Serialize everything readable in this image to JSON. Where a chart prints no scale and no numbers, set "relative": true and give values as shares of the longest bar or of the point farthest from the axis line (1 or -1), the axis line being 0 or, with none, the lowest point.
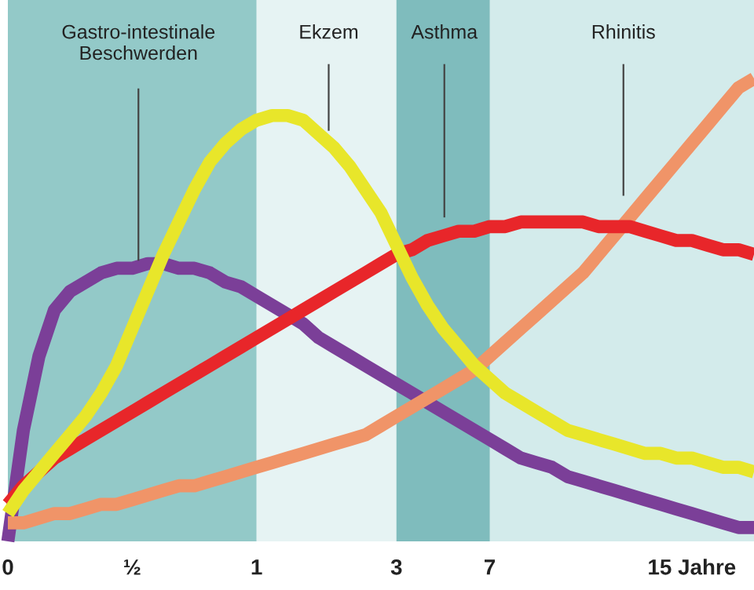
{
  "chart_data": {
    "type": "line",
    "relative": true,
    "grid": false,
    "legend": false,
    "marker": "none",
    "line_style": "solid",
    "categories": [
      "0",
      null,
      null,
      null,
      null,
      null,
      null,
      null,
      "½",
      null,
      null,
      null,
      null,
      null,
      null,
      null,
      "1",
      null,
      null,
      null,
      null,
      null,
      null,
      null,
      null,
      "3",
      null,
      null,
      null,
      null,
      null,
      "7",
      null,
      null,
      null,
      null,
      null,
      null,
      null,
      null,
      null,
      null,
      null,
      null,
      "15 Jahre",
      null,
      null,
      null,
      null
    ],
    "bands": [
      {
        "axis": "x",
        "from": "0",
        "to": "1",
        "color": "#93c9c8"
      },
      {
        "axis": "x",
        "from": "1",
        "to": "3",
        "color": "#e6f3f3"
      },
      {
        "axis": "x",
        "from": "3",
        "to": "7",
        "color": "#7fbcbd"
      }
    ],
    "series": [
      {
        "color": "#7b3f98",
        "values": [
          0,
          0.24,
          0.4,
          0.5,
          0.54,
          0.56,
          0.58,
          0.59,
          0.59,
          0.6,
          0.6,
          0.59,
          0.59,
          0.58,
          0.56,
          0.55,
          0.53,
          0.51,
          0.49,
          0.47,
          0.44,
          0.42,
          0.4,
          0.38,
          0.36,
          0.34,
          0.32,
          0.3,
          0.28,
          0.26,
          0.24,
          0.22,
          0.2,
          0.18,
          0.17,
          0.16,
          0.14,
          0.13,
          0.12,
          0.11,
          0.1,
          0.09,
          0.08,
          0.07,
          0.06,
          0.05,
          0.04,
          0.03,
          0.03
        ]
      },
      {
        "color": "#f09468",
        "values": [
          0.04,
          0.04,
          0.05,
          0.06,
          0.06,
          0.07,
          0.08,
          0.08,
          0.09,
          0.1,
          0.11,
          0.12,
          0.12,
          0.13,
          0.14,
          0.15,
          0.16,
          0.17,
          0.18,
          0.19,
          0.2,
          0.21,
          0.22,
          0.23,
          0.25,
          0.27,
          0.29,
          0.31,
          0.33,
          0.35,
          0.37,
          0.4,
          0.43,
          0.46,
          0.49,
          0.52,
          0.55,
          0.58,
          0.62,
          0.66,
          0.7,
          0.74,
          0.78,
          0.82,
          0.86,
          0.9,
          0.94,
          0.98,
          1.0
        ]
      },
      {
        "color": "#e8262a",
        "values": [
          0.08,
          0.12,
          0.15,
          0.18,
          0.2,
          0.22,
          0.24,
          0.26,
          0.28,
          0.3,
          0.32,
          0.34,
          0.36,
          0.38,
          0.4,
          0.42,
          0.44,
          0.46,
          0.48,
          0.5,
          0.52,
          0.54,
          0.56,
          0.58,
          0.6,
          0.62,
          0.63,
          0.65,
          0.66,
          0.67,
          0.67,
          0.68,
          0.68,
          0.69,
          0.69,
          0.69,
          0.69,
          0.69,
          0.68,
          0.68,
          0.68,
          0.67,
          0.66,
          0.65,
          0.65,
          0.64,
          0.63,
          0.63,
          0.62
        ]
      },
      {
        "color": "#e8e62a",
        "values": [
          0.06,
          0.11,
          0.15,
          0.19,
          0.23,
          0.27,
          0.32,
          0.38,
          0.46,
          0.54,
          0.62,
          0.69,
          0.76,
          0.82,
          0.86,
          0.89,
          0.91,
          0.92,
          0.92,
          0.91,
          0.88,
          0.85,
          0.81,
          0.76,
          0.71,
          0.64,
          0.57,
          0.51,
          0.46,
          0.42,
          0.38,
          0.35,
          0.32,
          0.3,
          0.28,
          0.26,
          0.24,
          0.23,
          0.22,
          0.21,
          0.2,
          0.19,
          0.19,
          0.18,
          0.18,
          0.17,
          0.16,
          0.16,
          0.15
        ]
      }
    ],
    "annotations": [
      "Gastro-intestinale\nBeschwerden",
      "Ekzem",
      "Asthma",
      "Rhinitis"
    ]
  }
}
